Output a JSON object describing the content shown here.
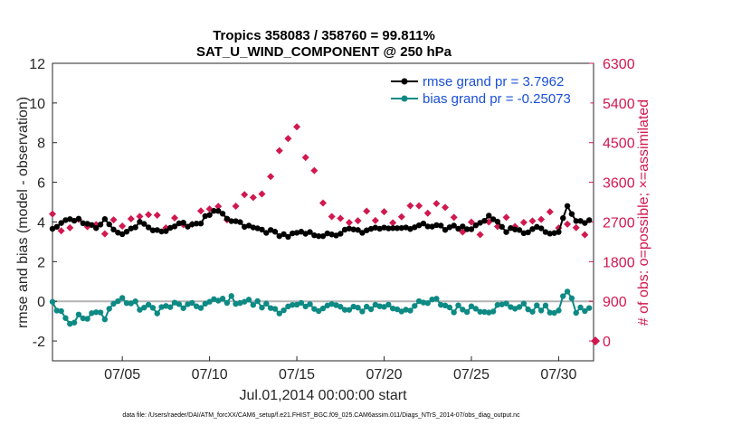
{
  "chart_data": {
    "type": "line",
    "title": "Tropics 358083 / 358760 = 99.811%",
    "subtitle": "SAT_U_WIND_COMPONENT @ 250 hPa",
    "xlabel": "Jul.01,2014 00:00:00 start",
    "ylabel": "rmse and bias (model - observation)",
    "ylabel_right": "# of obs: o=possible; ×=assimilated",
    "footer": "data file: /Users/raeder/DAI/ATM_forcXX/CAM6_setup/f.e21.FHIST_BGC.f09_025.CAM6assim.011/Diags_NTrS_2014-07/obs_diag_output.nc",
    "xlim": [
      1.0,
      32.0
    ],
    "ylim": [
      -3,
      12
    ],
    "ylim_right": [
      -450,
      6300
    ],
    "x_ticks": [
      5,
      10,
      15,
      20,
      25,
      30
    ],
    "x_tick_labels": [
      "07/05",
      "07/10",
      "07/15",
      "07/20",
      "07/25",
      "07/30"
    ],
    "y_ticks": [
      -2,
      0,
      2,
      4,
      6,
      8,
      10,
      12
    ],
    "y_tick_labels": [
      "-2",
      "0",
      "2",
      "4",
      "6",
      "8",
      "10",
      "12"
    ],
    "y_ticks_right": [
      0,
      900,
      1800,
      2700,
      3600,
      4500,
      5400,
      6300
    ],
    "y_tick_labels_right": [
      "0",
      "900",
      "1800",
      "2700",
      "3600",
      "4500",
      "5400",
      "6300"
    ],
    "zero_line": 0,
    "colors": {
      "rmse": "#000000",
      "bias": "#0e8a84",
      "obs": "#d1184f",
      "zero": "#b3b3b3",
      "legend_text": "#1a4fd6"
    },
    "legend": [
      "rmse grand pr = 3.7962",
      "bias grand pr = -0.25073"
    ],
    "series": [
      {
        "name": "rmse",
        "anchors_x": [
          1.0,
          1.5,
          2.0,
          3.0,
          3.5,
          4.0,
          4.5,
          5.0,
          6.0,
          7.0,
          8.0,
          9.0,
          9.5,
          10.0,
          10.5,
          11.0,
          11.5,
          12.0,
          13.0,
          14.0,
          14.5,
          15.0,
          16.0,
          17.0,
          18.0,
          19.0,
          20.0,
          21.0,
          22.0,
          23.0,
          23.5,
          24.0,
          25.0,
          25.5,
          26.0,
          27.0,
          28.0,
          29.0,
          29.5,
          30.0,
          30.5,
          31.0,
          31.5,
          32.0
        ],
        "anchors_y": [
          3.6,
          3.9,
          4.2,
          4.0,
          3.7,
          4.1,
          3.6,
          3.4,
          3.9,
          3.5,
          3.8,
          3.9,
          4.0,
          4.4,
          4.5,
          4.1,
          4.0,
          3.8,
          3.6,
          3.4,
          3.3,
          3.4,
          3.4,
          3.3,
          3.6,
          3.5,
          3.8,
          3.7,
          3.8,
          3.9,
          3.6,
          3.8,
          3.6,
          4.0,
          4.3,
          3.6,
          3.5,
          3.7,
          3.3,
          3.5,
          4.8,
          4.0,
          4.0,
          4.3
        ],
        "noise": 0.12
      },
      {
        "name": "bias",
        "anchors_x": [
          1.0,
          1.5,
          2.0,
          2.5,
          3.0,
          3.5,
          4.0,
          4.5,
          5.0,
          6.0,
          7.0,
          8.0,
          9.0,
          10.0,
          11.0,
          12.0,
          13.0,
          14.0,
          15.0,
          16.0,
          17.0,
          18.0,
          19.0,
          20.0,
          21.0,
          22.0,
          23.0,
          24.0,
          25.0,
          26.0,
          27.0,
          28.0,
          29.0,
          30.0,
          30.5,
          31.0,
          31.5,
          32.0
        ],
        "anchors_y": [
          -0.1,
          -0.4,
          -1.1,
          -0.8,
          -0.9,
          -0.6,
          -0.7,
          -0.1,
          0.1,
          -0.3,
          -0.4,
          -0.2,
          -0.3,
          -0.1,
          0.1,
          0.0,
          -0.2,
          -0.4,
          -0.3,
          -0.3,
          -0.2,
          -0.5,
          -0.3,
          -0.2,
          -0.4,
          -0.2,
          0.0,
          -0.4,
          -0.3,
          -0.4,
          -0.2,
          -0.3,
          -0.4,
          -0.5,
          0.6,
          -0.5,
          -0.4,
          -0.3
        ],
        "noise": 0.22
      },
      {
        "name": "obs assimilated",
        "anchors_x": [
          1.0,
          1.5,
          2.0,
          3.0,
          4.0,
          5.0,
          6.0,
          6.5,
          7.0,
          8.0,
          9.0,
          10.0,
          11.0,
          12.0,
          13.0,
          13.5,
          14.0,
          14.5,
          15.0,
          15.5,
          16.0,
          16.5,
          17.0,
          18.0,
          19.0,
          20.0,
          21.0,
          22.0,
          23.0,
          23.5,
          24.0,
          25.0,
          26.0,
          27.0,
          28.0,
          29.0,
          30.0,
          30.5,
          31.0,
          31.5,
          32.0
        ],
        "anchors_y": [
          2800,
          2600,
          2500,
          2500,
          2600,
          2500,
          2700,
          2950,
          2700,
          2750,
          2800,
          2800,
          2950,
          3200,
          3450,
          3800,
          4100,
          4400,
          4900,
          4200,
          3700,
          3300,
          3000,
          2750,
          2700,
          2800,
          2850,
          2900,
          3100,
          2850,
          2700,
          2650,
          2600,
          2700,
          2750,
          2800,
          2600,
          2900,
          2700,
          2600,
          2500
        ],
        "noise": 260
      },
      {
        "name": "obs possible",
        "anchors_x": [
          31.9
        ],
        "anchors_y": [
          0
        ]
      }
    ]
  }
}
